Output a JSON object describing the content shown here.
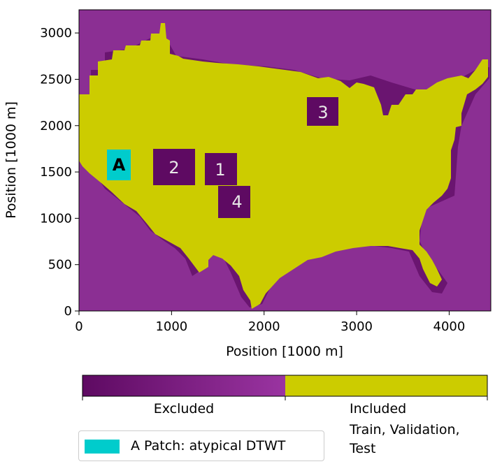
{
  "chart_data": {
    "type": "heatmap",
    "xlabel": "Position [1000 m]",
    "ylabel": "Position [1000 m]",
    "xlim": [
      0,
      4450
    ],
    "ylim": [
      0,
      3250
    ],
    "xticks": [
      0,
      1000,
      2000,
      3000,
      4000
    ],
    "yticks": [
      0,
      500,
      1000,
      1500,
      2000,
      2500,
      3000
    ],
    "classes": [
      {
        "name": "Excluded",
        "color": "#8b2f93"
      },
      {
        "name": "Included",
        "color": "#cccc00"
      }
    ],
    "regions": [
      {
        "label": "1",
        "x": [
          1360,
          1700
        ],
        "y": [
          1370,
          1720
        ]
      },
      {
        "label": "2",
        "x": [
          820,
          1260
        ],
        "y": [
          1360,
          1760
        ]
      },
      {
        "label": "3",
        "x": [
          2460,
          2790
        ],
        "y": [
          2030,
          2340
        ]
      },
      {
        "label": "4",
        "x": [
          1510,
          1850
        ],
        "y": [
          1000,
          1360
        ]
      },
      {
        "label": "A",
        "x": [
          310,
          560
        ],
        "y": [
          1420,
          1750
        ]
      }
    ],
    "colorbar": {
      "labels": [
        "Excluded",
        "Included\nTrain, Validation,\nTest"
      ],
      "colors": [
        "#5e0a62",
        "#9a34a1",
        "#cccc00"
      ]
    },
    "legend": {
      "label": "A Patch: atypical DTWT",
      "color": "#00cccc",
      "placement": "bottom-left"
    }
  }
}
